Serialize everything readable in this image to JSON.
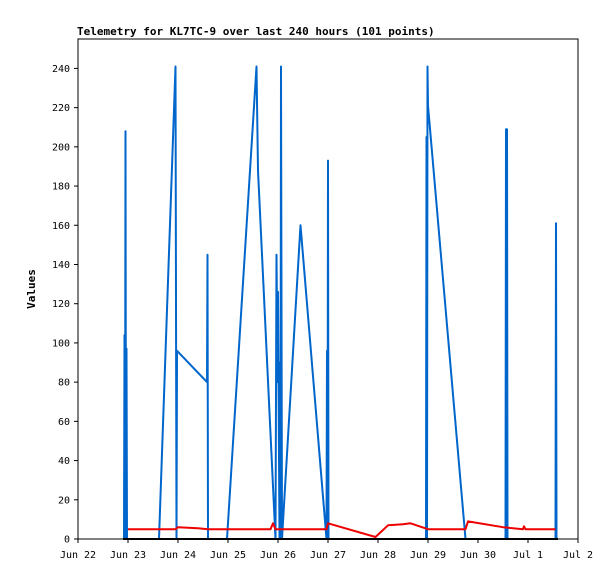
{
  "chart_data": {
    "type": "line",
    "title": "Telemetry for KL7TC-9 over last 240 hours (101 points)",
    "xlabel": "",
    "ylabel": "Values",
    "xlim": [
      22,
      32
    ],
    "ylim": [
      0,
      255
    ],
    "x_tick_values": [
      22,
      23,
      24,
      25,
      26,
      27,
      28,
      29,
      30,
      31,
      32
    ],
    "x_tick_labels": [
      "Jun 22",
      "Jun 23",
      "Jun 24",
      "Jun 25",
      "Jun 26",
      "Jun 27",
      "Jun 28",
      "Jun 29",
      "Jun 30",
      "Jul 1",
      "Jul 2"
    ],
    "y_ticks": [
      0,
      20,
      40,
      60,
      80,
      100,
      120,
      140,
      160,
      180,
      200,
      220,
      240
    ],
    "grid": false,
    "legend": "none",
    "x_units": "days (Jun 22 = 22; Jul 1 = 31)",
    "series": [
      {
        "color": "#0066cc",
        "points": [
          [
            22.92,
            0
          ],
          [
            22.93,
            104
          ],
          [
            22.94,
            0
          ],
          [
            22.95,
            208
          ],
          [
            22.96,
            0
          ],
          [
            22.97,
            97
          ],
          [
            22.98,
            0
          ],
          [
            23.62,
            0
          ],
          [
            23.95,
            241
          ],
          [
            23.97,
            0
          ],
          [
            23.98,
            96
          ],
          [
            24.58,
            80
          ],
          [
            24.59,
            145
          ],
          [
            24.6,
            0
          ],
          [
            24.98,
            0
          ],
          [
            25.57,
            241
          ],
          [
            25.6,
            188
          ],
          [
            25.95,
            0
          ],
          [
            25.97,
            145
          ],
          [
            25.99,
            80
          ],
          [
            26.0,
            126
          ],
          [
            26.03,
            0
          ],
          [
            26.04,
            90
          ],
          [
            26.05,
            0
          ],
          [
            26.06,
            241
          ],
          [
            26.08,
            0
          ],
          [
            26.45,
            160
          ],
          [
            26.97,
            0
          ],
          [
            26.98,
            96
          ],
          [
            26.99,
            0
          ],
          [
            27.0,
            193
          ],
          [
            27.01,
            0
          ],
          [
            28.96,
            0
          ],
          [
            28.97,
            205
          ],
          [
            28.98,
            0
          ],
          [
            28.99,
            241
          ],
          [
            29.0,
            221
          ],
          [
            29.75,
            0
          ],
          [
            30.55,
            0
          ],
          [
            30.56,
            209
          ],
          [
            30.57,
            0
          ],
          [
            30.58,
            209
          ],
          [
            30.59,
            0
          ],
          [
            31.55,
            0
          ],
          [
            31.56,
            161
          ],
          [
            31.57,
            0
          ]
        ]
      },
      {
        "color": "#ee0000",
        "points": [
          [
            23.0,
            5
          ],
          [
            23.95,
            5
          ],
          [
            24.0,
            6
          ],
          [
            24.4,
            5.5
          ],
          [
            24.6,
            5
          ],
          [
            25.85,
            5
          ],
          [
            25.9,
            8
          ],
          [
            25.95,
            5
          ],
          [
            26.5,
            5
          ],
          [
            26.97,
            5
          ],
          [
            27.0,
            8
          ],
          [
            27.95,
            1
          ],
          [
            28.2,
            7
          ],
          [
            28.5,
            7.5
          ],
          [
            28.65,
            8
          ],
          [
            29.0,
            5
          ],
          [
            29.75,
            5
          ],
          [
            29.8,
            9
          ],
          [
            30.5,
            6
          ],
          [
            30.9,
            5
          ],
          [
            30.92,
            6.5
          ],
          [
            30.95,
            5
          ],
          [
            31.55,
            5
          ]
        ]
      },
      {
        "color": "#000000",
        "points": [
          [
            22.9,
            0
          ],
          [
            31.6,
            0
          ]
        ]
      }
    ]
  }
}
